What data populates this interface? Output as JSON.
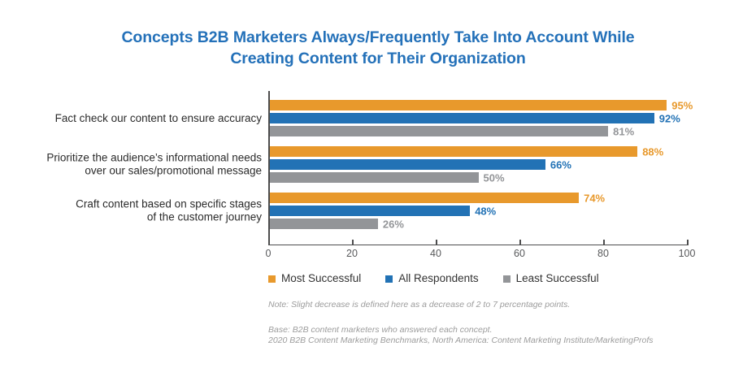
{
  "page": {
    "title_lines": [
      "Concepts B2B Marketers Always/Frequently Take Into Account While",
      "Creating Content for Their Organization"
    ]
  },
  "chart_data": {
    "type": "bar",
    "orientation": "horizontal",
    "title": "Concepts B2B Marketers Always/Frequently Take Into Account While Creating Content for Their Organization",
    "categories": [
      "Fact check our content to ensure accuracy",
      "Prioritize the audience’s informational needs over our sales/promotional message",
      "Craft content based on specific stages of the customer journey"
    ],
    "category_label_lines": [
      [
        "Fact check our content to ensure accuracy"
      ],
      [
        "Prioritize the audience’s informational needs",
        "over our sales/promotional message"
      ],
      [
        "Craft content based on specific stages",
        "of the customer journey"
      ]
    ],
    "series": [
      {
        "name": "Most Successful",
        "color": "#E8992C",
        "values": [
          95,
          88,
          74
        ]
      },
      {
        "name": "All Respondents",
        "color": "#2272B5",
        "values": [
          92,
          66,
          48
        ]
      },
      {
        "name": "Least Successful",
        "color": "#939598",
        "values": [
          81,
          50,
          26
        ]
      }
    ],
    "value_suffix": "%",
    "xlim": [
      0,
      100
    ],
    "xticks": [
      0,
      20,
      40,
      60,
      80,
      100
    ],
    "grid": false,
    "legend_position": "bottom-left"
  },
  "notes": {
    "note": "Note: Slight decrease is defined here as a decrease of 2 to 7 percentage points.",
    "base": "Base: B2B content marketers who answered each concept.",
    "source": "2020 B2B Content Marketing Benchmarks, North America: Content Marketing Institute/MarketingProfs"
  },
  "colors": {
    "title": "#2471B9",
    "axis": "#4D4D4E",
    "tick_label": "#58595B",
    "category_label": "#2B2B2B",
    "legend_label": "#333333",
    "note": "#9C9C9C"
  }
}
